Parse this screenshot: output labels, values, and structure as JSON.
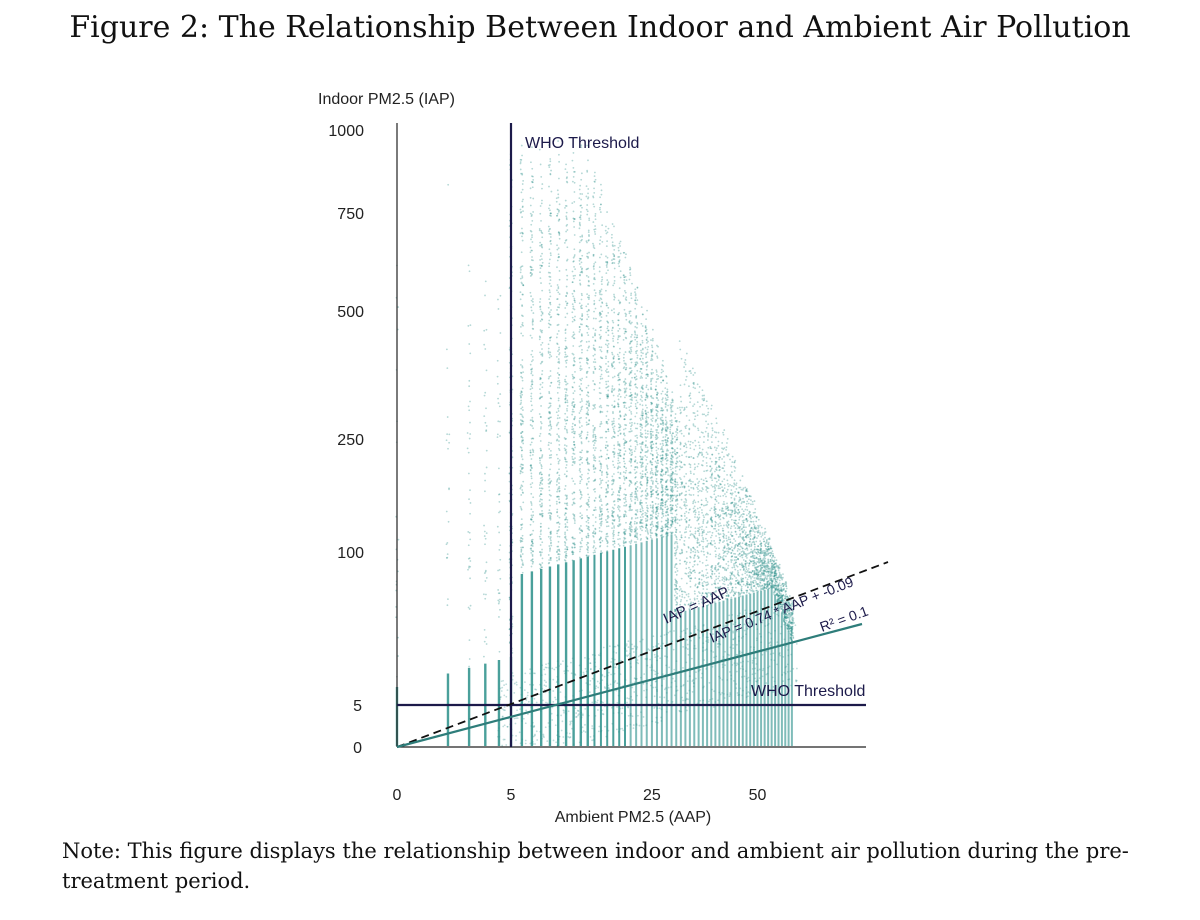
{
  "figure": {
    "title": "Figure 2: The Relationship Between Indoor and Ambient Air Pollution",
    "note": "Note: This figure displays the relationship between indoor and ambient air pollution during the pre-treatment period."
  },
  "chart_data": {
    "type": "scatter",
    "xlabel": "Ambient PM2.5 (AAP)",
    "ylabel": "Indoor PM2.5 (IAP)",
    "x_ticks": [
      0,
      5,
      25,
      50
    ],
    "y_ticks": [
      0,
      5,
      100,
      250,
      500,
      750,
      1000
    ],
    "xlim": [
      0,
      62
    ],
    "ylim": [
      0,
      1000
    ],
    "who_threshold_x": 5,
    "who_threshold_y": 5,
    "who_label_vertical": "WHO Threshold",
    "who_label_horizontal": "WHO Threshold",
    "identity_line_label": "IAP = AAP",
    "fit_line_label": "IAP = 0.74 * AAP + -0.09",
    "r2_label": "R² = 0.1",
    "fit": {
      "slope": 0.74,
      "intercept": -0.09,
      "r2": 0.1
    },
    "colors": {
      "points": "#2a8f8a",
      "fit_line": "#2e7d7a",
      "threshold": "#1c1a4a",
      "identity": "#111111"
    }
  }
}
